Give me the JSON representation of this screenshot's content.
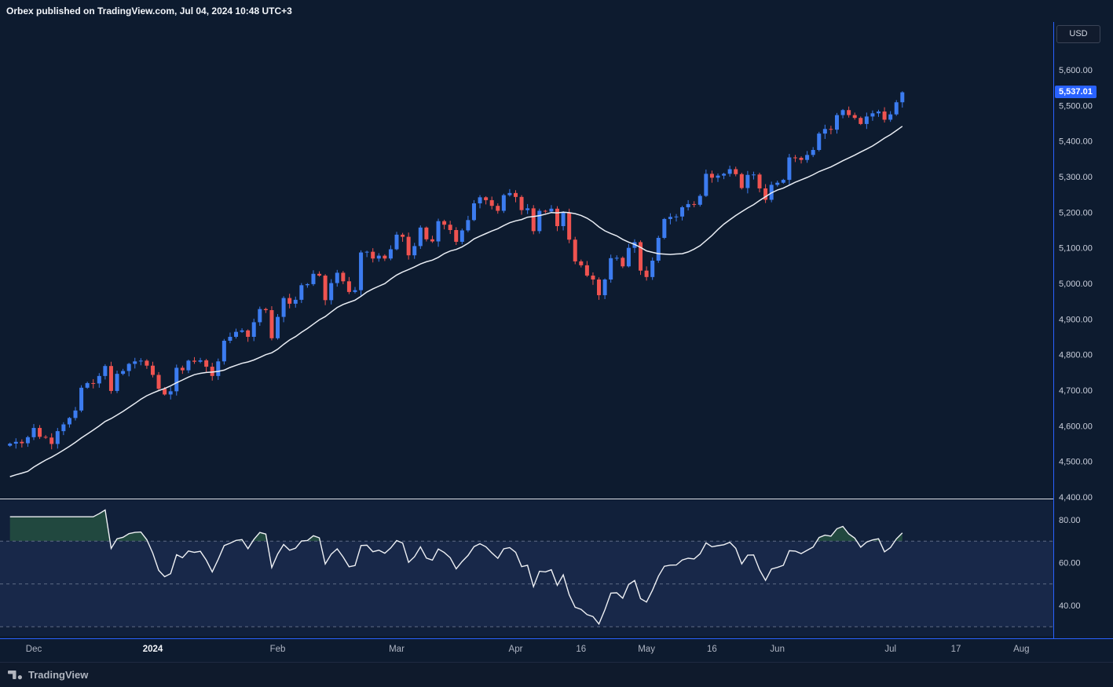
{
  "header": {
    "attribution": "Orbex published on TradingView.com, Jul 04, 2024 10:48 UTC+3",
    "currency": "USD"
  },
  "footer": {
    "brand": "TradingView"
  },
  "colors": {
    "background": "#0d1b2f",
    "axis_line_blue": "#2962ff",
    "pane_divider": "#dfe3ec",
    "axis_text": "#c9cedb",
    "up_candle": "#3c7cf0",
    "down_candle": "#ef5350",
    "ma_line": "#e9edf4",
    "rsi_line": "#eef0f4",
    "last_price_tag": "#2962ff",
    "overbought_fill": "#4caf50",
    "oversold_fill": "#ef5350"
  },
  "chart_data": {
    "type": "candlestick",
    "symbol_currency": "USD",
    "last_price_label": "5,537.01",
    "last_price": 5537.01,
    "ylim": [
      4400,
      5738
    ],
    "grid": false,
    "y_ticks": [
      {
        "label": "5,600.00",
        "value": 5600
      },
      {
        "label": "5,500.00",
        "value": 5500
      },
      {
        "label": "5,400.00",
        "value": 5400
      },
      {
        "label": "5,300.00",
        "value": 5300
      },
      {
        "label": "5,200.00",
        "value": 5200
      },
      {
        "label": "5,100.00",
        "value": 5100
      },
      {
        "label": "5,000.00",
        "value": 5000
      },
      {
        "label": "4,900.00",
        "value": 4900
      },
      {
        "label": "4,800.00",
        "value": 4800
      },
      {
        "label": "4,700.00",
        "value": 4700
      },
      {
        "label": "4,600.00",
        "value": 4600
      },
      {
        "label": "4,500.00",
        "value": 4500
      },
      {
        "label": "4,400.00",
        "value": 4400
      }
    ],
    "x_ticks": [
      {
        "label": "Dec",
        "index": 4,
        "bold": false
      },
      {
        "label": "2024",
        "index": 24,
        "bold": true
      },
      {
        "label": "Feb",
        "index": 45,
        "bold": false
      },
      {
        "label": "Mar",
        "index": 65,
        "bold": false
      },
      {
        "label": "Apr",
        "index": 85,
        "bold": false
      },
      {
        "label": "16",
        "index": 96,
        "bold": false
      },
      {
        "label": "May",
        "index": 107,
        "bold": false
      },
      {
        "label": "16",
        "index": 118,
        "bold": false
      },
      {
        "label": "Jun",
        "index": 129,
        "bold": false
      },
      {
        "label": "Jul",
        "index": 148,
        "bold": false
      },
      {
        "label": "17",
        "index": 159,
        "bold": false
      },
      {
        "label": "Aug",
        "index": 170,
        "bold": false
      }
    ],
    "open_rule": "previous_close",
    "first_open": 4544,
    "closes": [
      4550,
      4555,
      4551,
      4568,
      4594,
      4569,
      4567,
      4549,
      4585,
      4604,
      4622,
      4643,
      4707,
      4720,
      4719,
      4740,
      4768,
      4698,
      4746,
      4754,
      4774,
      4781,
      4783,
      4769,
      4743,
      4704,
      4688,
      4697,
      4763,
      4756,
      4783,
      4780,
      4784,
      4766,
      4740,
      4781,
      4839,
      4850,
      4864,
      4868,
      4850,
      4891,
      4928,
      4925,
      4846,
      4906,
      4959,
      4943,
      4954,
      4995,
      4998,
      5027,
      5022,
      4953,
      5001,
      5030,
      5006,
      4976,
      4981,
      5087,
      5089,
      5070,
      5078,
      5070,
      5096,
      5137,
      5131,
      5079,
      5105,
      5157,
      5124,
      5118,
      5175,
      5165,
      5150,
      5117,
      5149,
      5178,
      5225,
      5242,
      5234,
      5218,
      5204,
      5248,
      5254,
      5243,
      5206,
      5211,
      5147,
      5204,
      5202,
      5210,
      5161,
      5199,
      5123,
      5062,
      5051,
      5022,
      5011,
      4967,
      5011,
      5071,
      5072,
      5048,
      5100,
      5116,
      5036,
      5018,
      5064,
      5128,
      5181,
      5187,
      5188,
      5214,
      5223,
      5221,
      5246,
      5308,
      5297,
      5303,
      5308,
      5321,
      5307,
      5268,
      5305,
      5306,
      5267,
      5235,
      5277,
      5283,
      5291,
      5354,
      5353,
      5347,
      5361,
      5375,
      5421,
      5434,
      5432,
      5473,
      5487,
      5473,
      5465,
      5448,
      5469,
      5478,
      5483,
      5460,
      5475,
      5509,
      5537
    ],
    "overlays": [
      {
        "name": "SMA 20",
        "type": "line",
        "period": 20,
        "color": "#e9edf4",
        "seed_closes": [
          4358,
          4365,
          4378,
          4383,
          4391,
          4404,
          4411,
          4416,
          4462,
          4495,
          4500,
          4508,
          4514,
          4538,
          4547,
          4550
        ]
      }
    ],
    "indicator": {
      "name": "RSI 14",
      "type": "line",
      "period": 14,
      "color": "#eef0f4",
      "hlines": [
        70,
        50,
        30
      ],
      "band": [
        30,
        70
      ],
      "y_ticks": [
        {
          "label": "80.00",
          "value": 80
        },
        {
          "label": "60.00",
          "value": 60
        },
        {
          "label": "40.00",
          "value": 40
        }
      ]
    }
  }
}
